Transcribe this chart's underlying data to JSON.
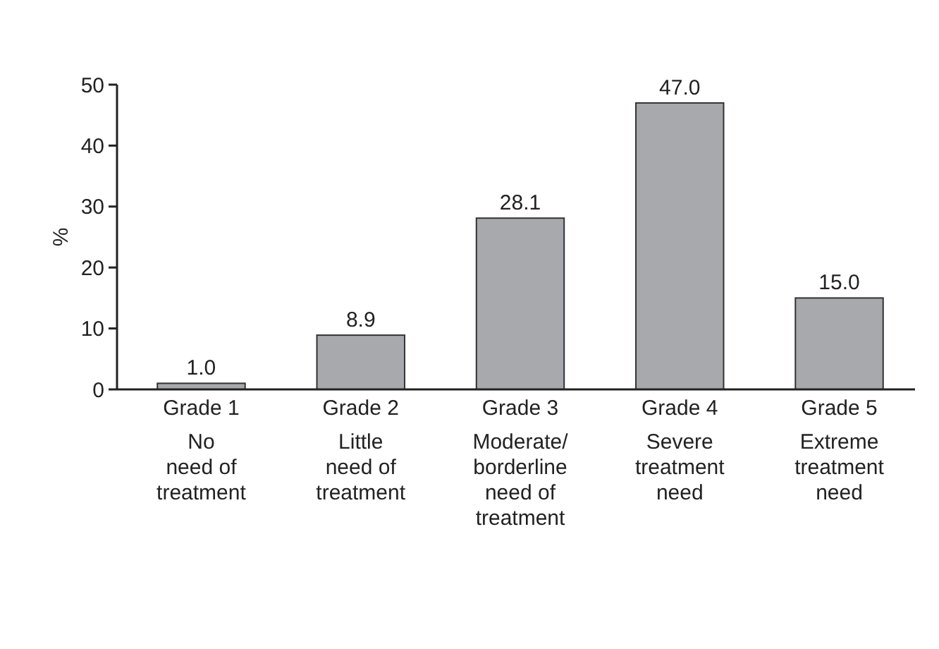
{
  "chart_data": {
    "type": "bar",
    "ylabel": "%",
    "categories": [
      "Grade 1\nNo\nneed of\ntreatment",
      "Grade 2\nLittle\nneed of\ntreatment",
      "Grade 3\nModerate/\nborderline\nneed of\ntreatment",
      "Grade 4\nSevere\ntreatment\nneed",
      "Grade 5\nExtreme\ntreatment\nneed"
    ],
    "values": [
      1.0,
      8.9,
      28.1,
      47.0,
      15.0
    ],
    "value_labels": [
      "1.0",
      "8.9",
      "28.1",
      "47.0",
      "15.0"
    ],
    "color": "#a7a9ac",
    "ylim": [
      0,
      50
    ],
    "yticks": [
      0,
      10,
      20,
      30,
      40,
      50
    ],
    "grid": false
  }
}
